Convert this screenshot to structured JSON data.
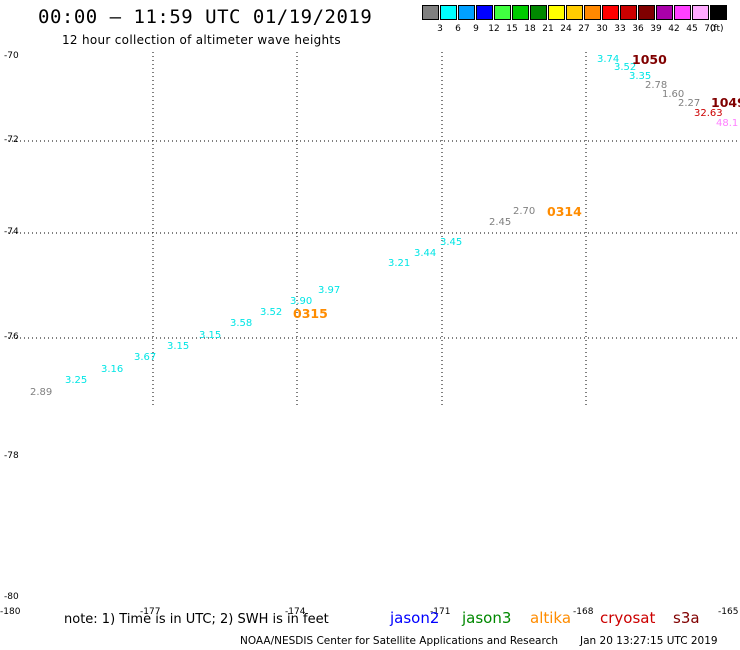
{
  "header": {
    "title": "00:00 – 11:59 UTC 01/19/2019",
    "subtitle": "12 hour collection of altimeter wave heights"
  },
  "legend": {
    "unit": "(ft)",
    "items": [
      {
        "color": "#808080",
        "label": "3"
      },
      {
        "color": "#00ffff",
        "label": "6"
      },
      {
        "color": "#00a0ff",
        "label": "9"
      },
      {
        "color": "#0000ff",
        "label": "12"
      },
      {
        "color": "#40ff40",
        "label": "15"
      },
      {
        "color": "#00cc00",
        "label": "18"
      },
      {
        "color": "#008800",
        "label": "21"
      },
      {
        "color": "#ffff00",
        "label": "24"
      },
      {
        "color": "#ffcc00",
        "label": "27"
      },
      {
        "color": "#ff8800",
        "label": "30"
      },
      {
        "color": "#ff0000",
        "label": "33"
      },
      {
        "color": "#cc0000",
        "label": "36"
      },
      {
        "color": "#800000",
        "label": "39"
      },
      {
        "color": "#aa00aa",
        "label": "42"
      },
      {
        "color": "#ff40ff",
        "label": "45"
      },
      {
        "color": "#ffaaff",
        "label": "70"
      },
      {
        "color": "#000000",
        "label": ""
      }
    ]
  },
  "axes": {
    "lat_labels": [
      "-70",
      "-72",
      "-74",
      "-76",
      "-78",
      "-80"
    ],
    "lon_labels": [
      "-180",
      "-177",
      "-174",
      "-171",
      "-168",
      "-165"
    ]
  },
  "observations": [
    {
      "text": "2.89",
      "color": "#808080"
    },
    {
      "text": "3.25",
      "color": "#00e5e5"
    },
    {
      "text": "3.16",
      "color": "#00e5e5"
    },
    {
      "text": "3.67",
      "color": "#00e5e5"
    },
    {
      "text": "3.15",
      "color": "#00e5e5"
    },
    {
      "text": "3.15",
      "color": "#00e5e5"
    },
    {
      "text": "3.58",
      "color": "#00e5e5"
    },
    {
      "text": "3.52",
      "color": "#00e5e5"
    },
    {
      "text": "3.90",
      "color": "#00e5e5"
    },
    {
      "text": "3.97",
      "color": "#00e5e5"
    },
    {
      "text": "3.21",
      "color": "#00e5e5"
    },
    {
      "text": "3.44",
      "color": "#00e5e5"
    },
    {
      "text": "3.45",
      "color": "#00e5e5"
    },
    {
      "text": "2.45",
      "color": "#808080"
    },
    {
      "text": "2.70",
      "color": "#808080"
    },
    {
      "text": "3.74",
      "color": "#00e5e5"
    },
    {
      "text": "3.52",
      "color": "#00e5e5"
    },
    {
      "text": "3.35",
      "color": "#00e5e5"
    },
    {
      "text": "2.78",
      "color": "#808080"
    },
    {
      "text": "1.60",
      "color": "#808080"
    },
    {
      "text": "2.27",
      "color": "#808080"
    },
    {
      "text": "32.63",
      "color": "#cc0000"
    },
    {
      "text": "48.1",
      "color": "#ff80ff"
    }
  ],
  "time_labels": [
    {
      "text": "0315",
      "color": "#ff8c00"
    },
    {
      "text": "0314",
      "color": "#ff8c00"
    },
    {
      "text": "1050",
      "color": "#800000"
    },
    {
      "text": "1049",
      "color": "#800000"
    }
  ],
  "note": "note: 1) Time is in UTC; 2) SWH is in feet",
  "missions": [
    {
      "name": "jason2",
      "color": "#0000ff"
    },
    {
      "name": "jason3",
      "color": "#008800"
    },
    {
      "name": "altika",
      "color": "#ff8c00"
    },
    {
      "name": "cryosat",
      "color": "#cc0000"
    },
    {
      "name": "s3a",
      "color": "#800000"
    }
  ],
  "footer": {
    "credit": "NOAA/NESDIS Center for Satellite Applications and Research",
    "timestamp": "Jan 20 13:27:15 UTC 2019"
  }
}
